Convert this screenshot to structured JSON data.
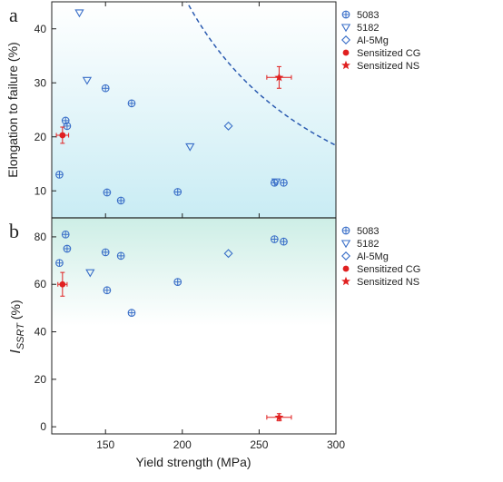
{
  "chart_data": [
    {
      "type": "scatter",
      "panel_label": "a",
      "ylabel": "Elongation to failure (%)",
      "xlim": [
        115,
        300
      ],
      "ylim": [
        5,
        45
      ],
      "yticks": [
        10,
        20,
        30,
        40
      ],
      "legend_position": "top-right",
      "background": "gradient from white (top) to light blue (bottom)",
      "series": [
        {
          "name": "5083",
          "marker": "circle-plus",
          "color": "#3a6fc8",
          "x": [
            120,
            124,
            125,
            150,
            151,
            160,
            167,
            197,
            260,
            266
          ],
          "y": [
            13,
            23,
            22,
            29,
            9.7,
            8.2,
            26.2,
            9.8,
            11.5,
            11.5
          ]
        },
        {
          "name": "5182",
          "marker": "triangle-down",
          "color": "#3a6fc8",
          "x": [
            133,
            138,
            205,
            261
          ],
          "y": [
            43,
            30.5,
            18.2,
            11.7
          ]
        },
        {
          "name": "Al-5Mg",
          "marker": "diamond",
          "color": "#3a6fc8",
          "x": [
            230
          ],
          "y": [
            22
          ]
        },
        {
          "name": "Sensitized CG",
          "marker": "filled-circle",
          "color": "#e02020",
          "x": [
            122
          ],
          "y": [
            20.3
          ],
          "xerr": [
            4
          ],
          "yerr": [
            1.5
          ]
        },
        {
          "name": "Sensitized NS",
          "marker": "star",
          "color": "#e02020",
          "x": [
            263
          ],
          "y": [
            31
          ],
          "xerr": [
            8
          ],
          "yerr": [
            2
          ]
        }
      ],
      "trend_curve": {
        "style": "dashed",
        "color": "#2a5ab0",
        "form": "y = 5980/(x - 96) - 10.9"
      }
    },
    {
      "type": "scatter",
      "panel_label": "b",
      "ylabel_main": "I",
      "ylabel_sub": "SSRT",
      "ylabel_unit": " (%)",
      "xlabel": "Yield strength (MPa)",
      "xlim": [
        115,
        300
      ],
      "ylim": [
        -3,
        88
      ],
      "xticks": [
        150,
        200,
        250,
        300
      ],
      "yticks": [
        0,
        20,
        40,
        60,
        80
      ],
      "legend_position": "top-right",
      "background": "gradient from light teal (top) to white (bottom)",
      "series": [
        {
          "name": "5083",
          "marker": "circle-plus",
          "color": "#3a6fc8",
          "x": [
            120,
            124,
            125,
            150,
            151,
            160,
            167,
            197,
            260,
            266
          ],
          "y": [
            69,
            81,
            75,
            73.5,
            57.5,
            72,
            48,
            61,
            79,
            78
          ]
        },
        {
          "name": "5182",
          "marker": "triangle-down",
          "color": "#3a6fc8",
          "x": [
            140
          ],
          "y": [
            65
          ]
        },
        {
          "name": "Al-5Mg",
          "marker": "diamond",
          "color": "#3a6fc8",
          "x": [
            230
          ],
          "y": [
            73
          ]
        },
        {
          "name": "Sensitized CG",
          "marker": "filled-circle",
          "color": "#e02020",
          "x": [
            122
          ],
          "y": [
            60
          ],
          "xerr": [
            3
          ],
          "yerr": [
            5
          ]
        },
        {
          "name": "Sensitized NS",
          "marker": "star",
          "color": "#e02020",
          "x": [
            263
          ],
          "y": [
            4
          ],
          "xerr": [
            8
          ],
          "yerr": [
            1.5
          ]
        }
      ]
    }
  ]
}
